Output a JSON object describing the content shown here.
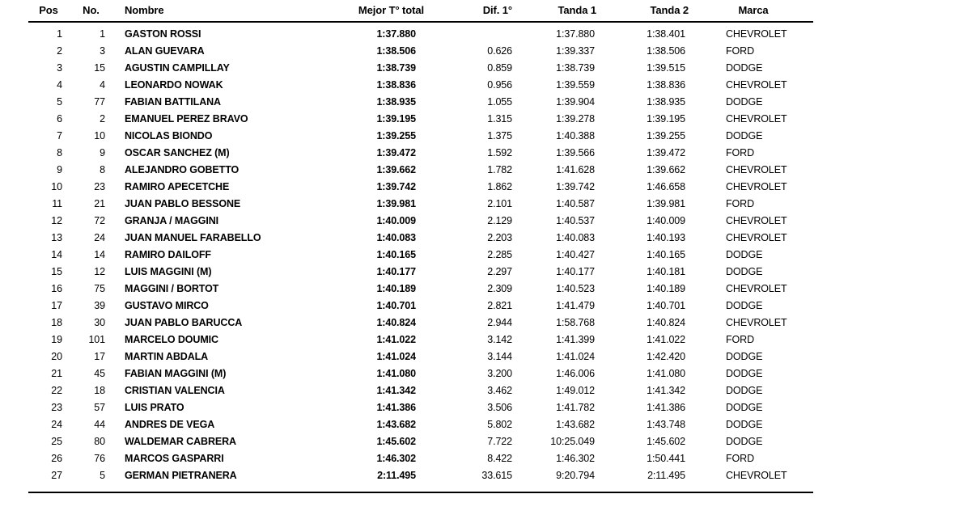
{
  "colors": {
    "text": "#000000",
    "background": "#ffffff",
    "rule": "#000000"
  },
  "table": {
    "columns": [
      {
        "id": "pos",
        "label": "Pos"
      },
      {
        "id": "no",
        "label": "No."
      },
      {
        "id": "nombre",
        "label": "Nombre"
      },
      {
        "id": "mejor_total",
        "label": "Mejor T° total"
      },
      {
        "id": "dif_1",
        "label": "Dif. 1°"
      },
      {
        "id": "tanda1",
        "label": "Tanda 1"
      },
      {
        "id": "tanda2",
        "label": "Tanda 2"
      },
      {
        "id": "marca",
        "label": "Marca"
      }
    ],
    "rows": [
      {
        "pos": "1",
        "no": "1",
        "nombre": "GASTON ROSSI",
        "mejor_total": "1:37.880",
        "dif_1": "",
        "tanda1": "1:37.880",
        "tanda2": "1:38.401",
        "marca": "CHEVROLET"
      },
      {
        "pos": "2",
        "no": "3",
        "nombre": "ALAN GUEVARA",
        "mejor_total": "1:38.506",
        "dif_1": "0.626",
        "tanda1": "1:39.337",
        "tanda2": "1:38.506",
        "marca": "FORD"
      },
      {
        "pos": "3",
        "no": "15",
        "nombre": "AGUSTIN CAMPILLAY",
        "mejor_total": "1:38.739",
        "dif_1": "0.859",
        "tanda1": "1:38.739",
        "tanda2": "1:39.515",
        "marca": "DODGE"
      },
      {
        "pos": "4",
        "no": "4",
        "nombre": "LEONARDO NOWAK",
        "mejor_total": "1:38.836",
        "dif_1": "0.956",
        "tanda1": "1:39.559",
        "tanda2": "1:38.836",
        "marca": "CHEVROLET"
      },
      {
        "pos": "5",
        "no": "77",
        "nombre": "FABIAN BATTILANA",
        "mejor_total": "1:38.935",
        "dif_1": "1.055",
        "tanda1": "1:39.904",
        "tanda2": "1:38.935",
        "marca": "DODGE"
      },
      {
        "pos": "6",
        "no": "2",
        "nombre": "EMANUEL PEREZ BRAVO",
        "mejor_total": "1:39.195",
        "dif_1": "1.315",
        "tanda1": "1:39.278",
        "tanda2": "1:39.195",
        "marca": "CHEVROLET"
      },
      {
        "pos": "7",
        "no": "10",
        "nombre": "NICOLAS BIONDO",
        "mejor_total": "1:39.255",
        "dif_1": "1.375",
        "tanda1": "1:40.388",
        "tanda2": "1:39.255",
        "marca": "DODGE"
      },
      {
        "pos": "8",
        "no": "9",
        "nombre": "OSCAR SANCHEZ (M)",
        "mejor_total": "1:39.472",
        "dif_1": "1.592",
        "tanda1": "1:39.566",
        "tanda2": "1:39.472",
        "marca": "FORD"
      },
      {
        "pos": "9",
        "no": "8",
        "nombre": "ALEJANDRO GOBETTO",
        "mejor_total": "1:39.662",
        "dif_1": "1.782",
        "tanda1": "1:41.628",
        "tanda2": "1:39.662",
        "marca": "CHEVROLET"
      },
      {
        "pos": "10",
        "no": "23",
        "nombre": "RAMIRO APECETCHE",
        "mejor_total": "1:39.742",
        "dif_1": "1.862",
        "tanda1": "1:39.742",
        "tanda2": "1:46.658",
        "marca": "CHEVROLET"
      },
      {
        "pos": "11",
        "no": "21",
        "nombre": "JUAN PABLO BESSONE",
        "mejor_total": "1:39.981",
        "dif_1": "2.101",
        "tanda1": "1:40.587",
        "tanda2": "1:39.981",
        "marca": "FORD"
      },
      {
        "pos": "12",
        "no": "72",
        "nombre": "GRANJA / MAGGINI",
        "mejor_total": "1:40.009",
        "dif_1": "2.129",
        "tanda1": "1:40.537",
        "tanda2": "1:40.009",
        "marca": "CHEVROLET"
      },
      {
        "pos": "13",
        "no": "24",
        "nombre": "JUAN MANUEL FARABELLO",
        "mejor_total": "1:40.083",
        "dif_1": "2.203",
        "tanda1": "1:40.083",
        "tanda2": "1:40.193",
        "marca": "CHEVROLET"
      },
      {
        "pos": "14",
        "no": "14",
        "nombre": "RAMIRO DAILOFF",
        "mejor_total": "1:40.165",
        "dif_1": "2.285",
        "tanda1": "1:40.427",
        "tanda2": "1:40.165",
        "marca": "DODGE"
      },
      {
        "pos": "15",
        "no": "12",
        "nombre": "LUIS MAGGINI (M)",
        "mejor_total": "1:40.177",
        "dif_1": "2.297",
        "tanda1": "1:40.177",
        "tanda2": "1:40.181",
        "marca": "DODGE"
      },
      {
        "pos": "16",
        "no": "75",
        "nombre": "MAGGINI / BORTOT",
        "mejor_total": "1:40.189",
        "dif_1": "2.309",
        "tanda1": "1:40.523",
        "tanda2": "1:40.189",
        "marca": "CHEVROLET"
      },
      {
        "pos": "17",
        "no": "39",
        "nombre": "GUSTAVO MIRCO",
        "mejor_total": "1:40.701",
        "dif_1": "2.821",
        "tanda1": "1:41.479",
        "tanda2": "1:40.701",
        "marca": "DODGE"
      },
      {
        "pos": "18",
        "no": "30",
        "nombre": "JUAN PABLO BARUCCA",
        "mejor_total": "1:40.824",
        "dif_1": "2.944",
        "tanda1": "1:58.768",
        "tanda2": "1:40.824",
        "marca": "CHEVROLET"
      },
      {
        "pos": "19",
        "no": "101",
        "nombre": "MARCELO DOUMIC",
        "mejor_total": "1:41.022",
        "dif_1": "3.142",
        "tanda1": "1:41.399",
        "tanda2": "1:41.022",
        "marca": "FORD"
      },
      {
        "pos": "20",
        "no": "17",
        "nombre": "MARTIN ABDALA",
        "mejor_total": "1:41.024",
        "dif_1": "3.144",
        "tanda1": "1:41.024",
        "tanda2": "1:42.420",
        "marca": "DODGE"
      },
      {
        "pos": "21",
        "no": "45",
        "nombre": "FABIAN MAGGINI (M)",
        "mejor_total": "1:41.080",
        "dif_1": "3.200",
        "tanda1": "1:46.006",
        "tanda2": "1:41.080",
        "marca": "DODGE"
      },
      {
        "pos": "22",
        "no": "18",
        "nombre": "CRISTIAN VALENCIA",
        "mejor_total": "1:41.342",
        "dif_1": "3.462",
        "tanda1": "1:49.012",
        "tanda2": "1:41.342",
        "marca": "DODGE"
      },
      {
        "pos": "23",
        "no": "57",
        "nombre": "LUIS PRATO",
        "mejor_total": "1:41.386",
        "dif_1": "3.506",
        "tanda1": "1:41.782",
        "tanda2": "1:41.386",
        "marca": "DODGE"
      },
      {
        "pos": "24",
        "no": "44",
        "nombre": "ANDRES DE VEGA",
        "mejor_total": "1:43.682",
        "dif_1": "5.802",
        "tanda1": "1:43.682",
        "tanda2": "1:43.748",
        "marca": "DODGE"
      },
      {
        "pos": "25",
        "no": "80",
        "nombre": "WALDEMAR CABRERA",
        "mejor_total": "1:45.602",
        "dif_1": "7.722",
        "tanda1": "10:25.049",
        "tanda2": "1:45.602",
        "marca": "DODGE"
      },
      {
        "pos": "26",
        "no": "76",
        "nombre": "MARCOS GASPARRI",
        "mejor_total": "1:46.302",
        "dif_1": "8.422",
        "tanda1": "1:46.302",
        "tanda2": "1:50.441",
        "marca": "FORD"
      },
      {
        "pos": "27",
        "no": "5",
        "nombre": "GERMAN PIETRANERA",
        "mejor_total": "2:11.495",
        "dif_1": "33.615",
        "tanda1": "9:20.794",
        "tanda2": "2:11.495",
        "marca": "CHEVROLET"
      }
    ]
  }
}
